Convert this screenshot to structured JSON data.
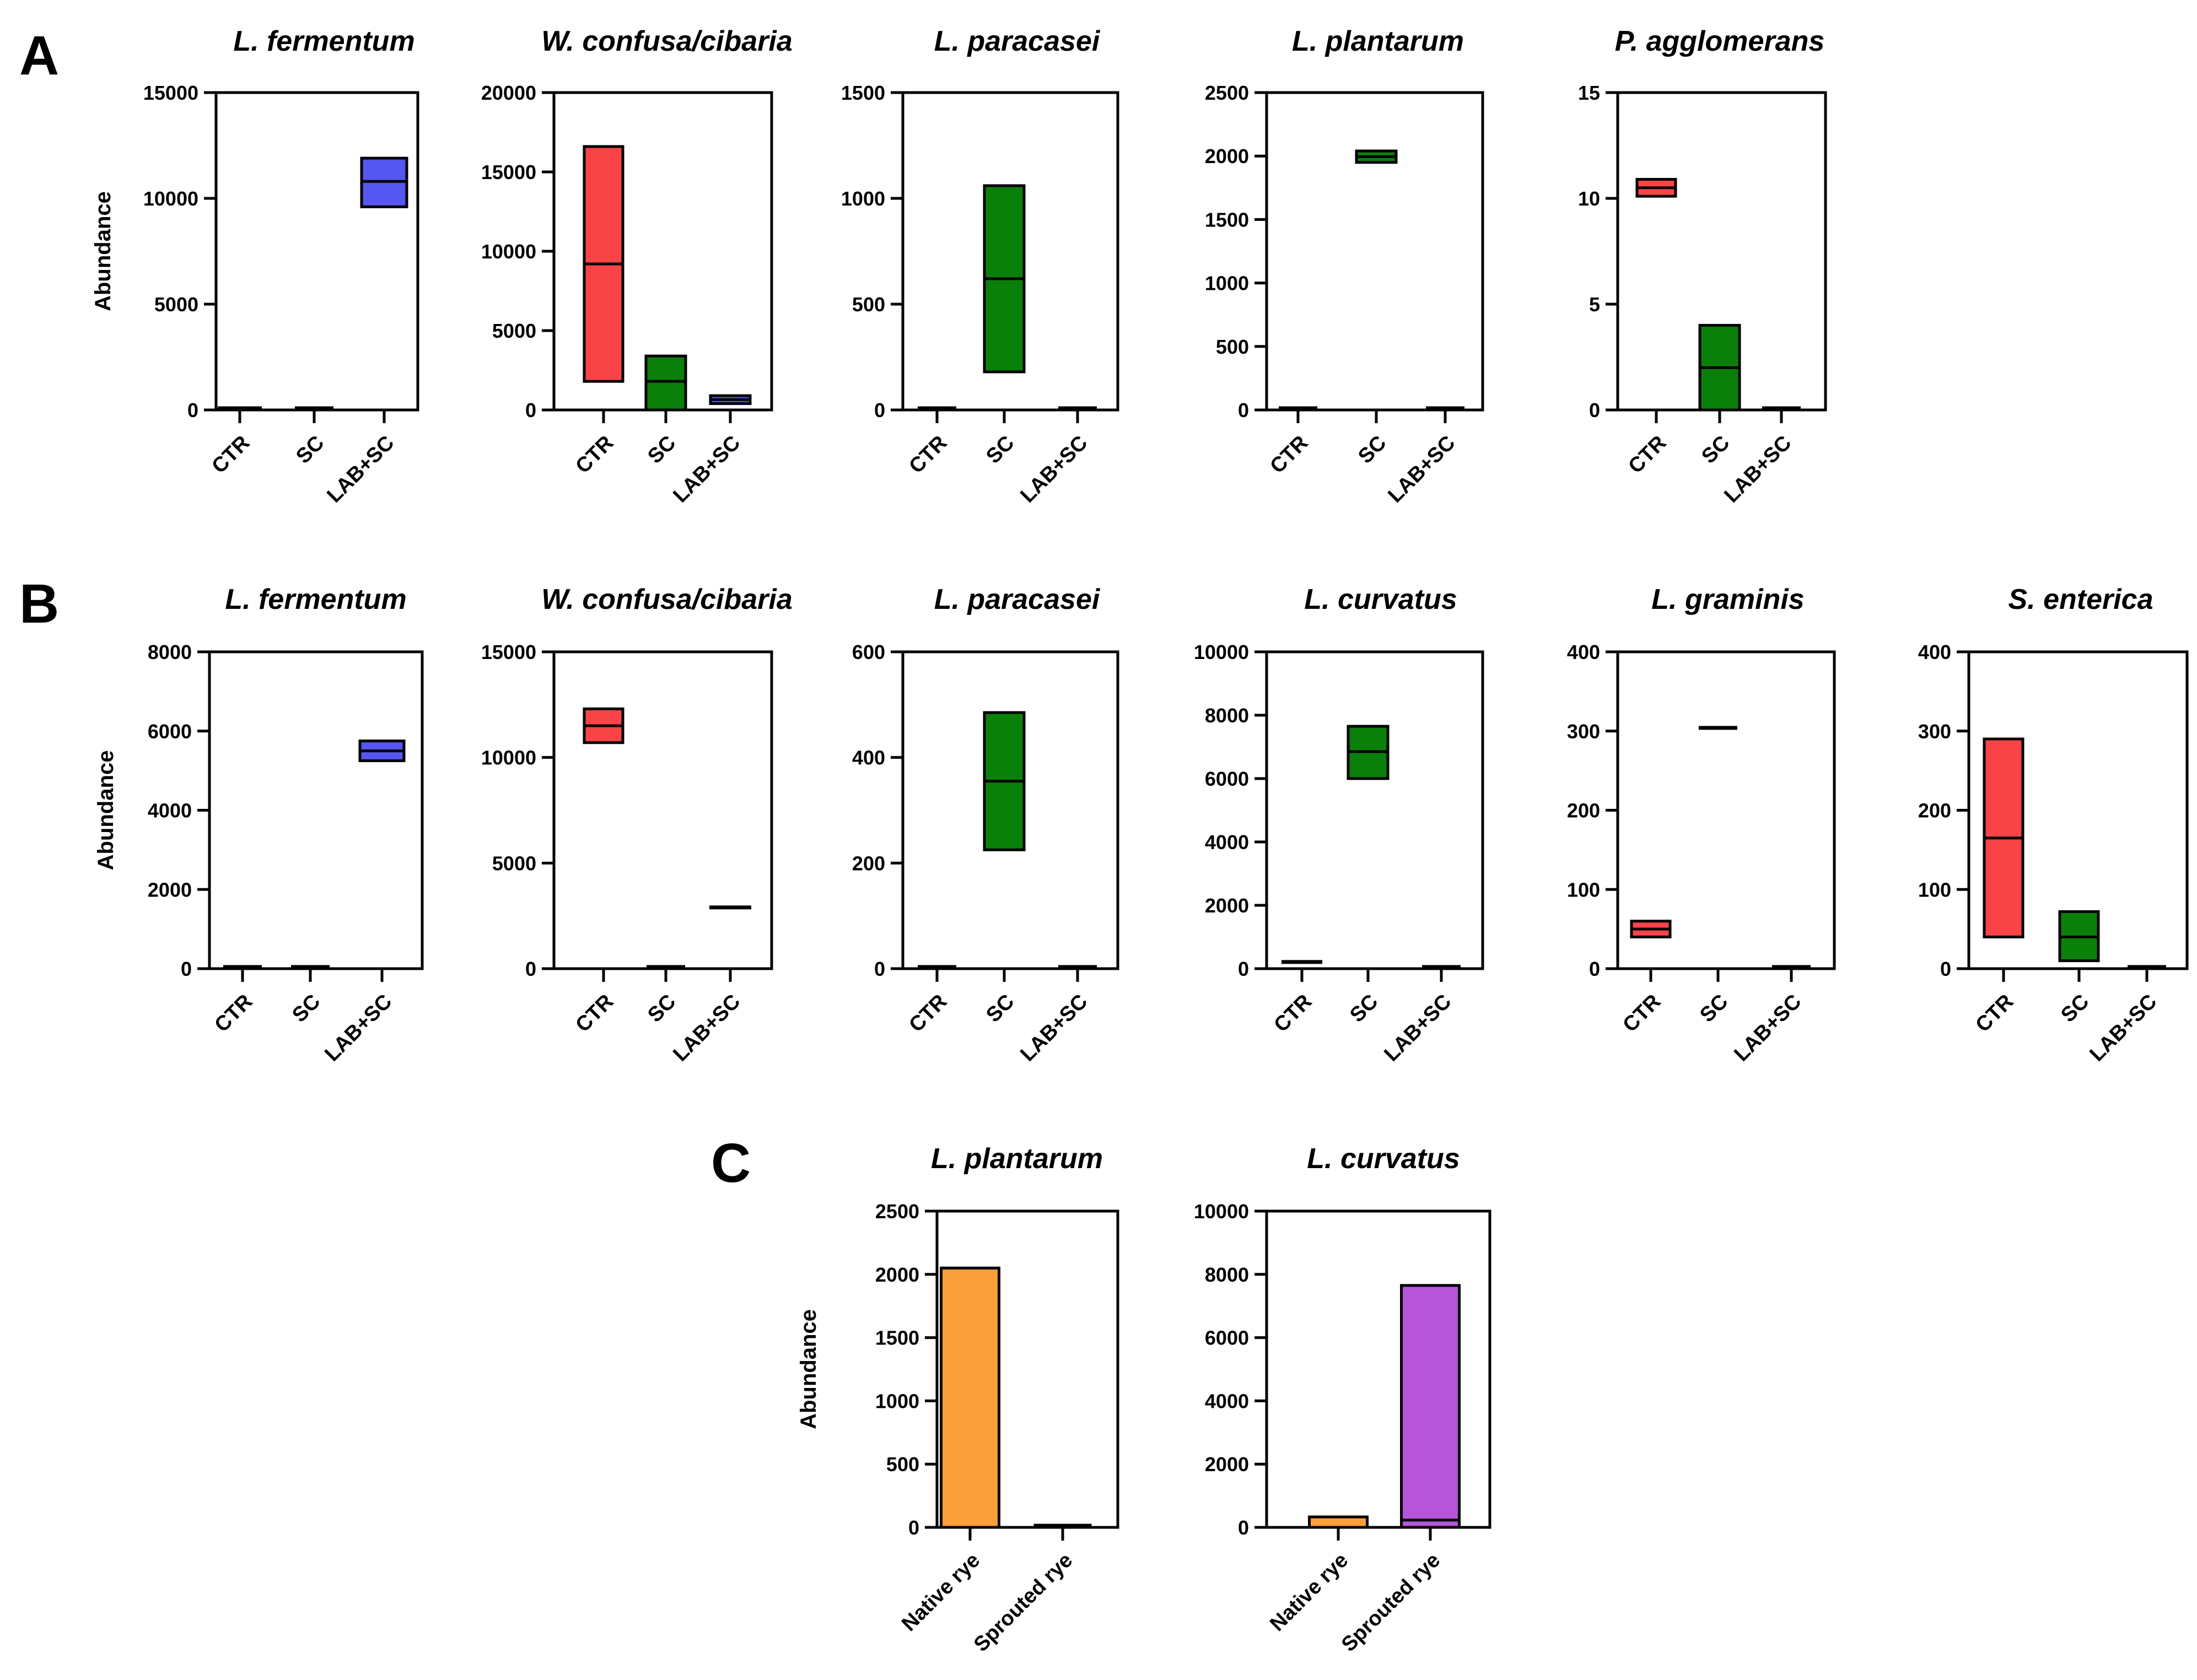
{
  "figure": {
    "panels": [
      {
        "letter": "A"
      },
      {
        "letter": "B"
      },
      {
        "letter": "C"
      }
    ]
  },
  "colors": {
    "CTR": "#f94447",
    "SC": "#0a800a",
    "LAB+SC": "#5656f0",
    "Native rye": "#fb9f3a",
    "Sprouted rye": "#b655da",
    "outline": "#000000"
  },
  "chart_data": [
    {
      "panel": "A",
      "type": "bar",
      "title": "L. fermentum",
      "ylabel": "Abundance",
      "categories": [
        "CTR",
        "SC",
        "LAB+SC"
      ],
      "ylim": [
        0,
        15000
      ],
      "yticks": [
        0,
        5000,
        10000,
        15000
      ],
      "ytick_labels": [
        "0",
        "5000",
        "10000",
        "15000"
      ],
      "bars": [
        {
          "category": "CTR",
          "min": 0,
          "max": 20,
          "median": 10
        },
        {
          "category": "SC",
          "min": 0,
          "max": 70,
          "median": 35
        },
        {
          "category": "LAB+SC",
          "min": 9600,
          "max": 11900,
          "median": 10800
        }
      ]
    },
    {
      "panel": "A",
      "type": "bar",
      "title": "W. confusa/cibaria",
      "ylabel": "",
      "categories": [
        "CTR",
        "SC",
        "LAB+SC"
      ],
      "ylim": [
        0,
        20000
      ],
      "yticks": [
        0,
        5000,
        10000,
        15000,
        20000
      ],
      "ytick_labels": [
        "0",
        "5000",
        "10000",
        "15000",
        "20000"
      ],
      "bars": [
        {
          "category": "CTR",
          "min": 1800,
          "max": 16600,
          "median": 9200
        },
        {
          "category": "SC",
          "min": 0,
          "max": 3400,
          "median": 1800
        },
        {
          "category": "LAB+SC",
          "min": 400,
          "max": 900,
          "median": 650
        }
      ]
    },
    {
      "panel": "A",
      "type": "bar",
      "title": "L. paracasei",
      "ylabel": "",
      "categories": [
        "CTR",
        "SC",
        "LAB+SC"
      ],
      "ylim": [
        0,
        1500
      ],
      "yticks": [
        0,
        500,
        1000,
        1500
      ],
      "ytick_labels": [
        "0",
        "500",
        "1000",
        "1500"
      ],
      "bars": [
        {
          "category": "CTR",
          "min": 0,
          "max": 8,
          "median": 4
        },
        {
          "category": "SC",
          "min": 180,
          "max": 1060,
          "median": 620
        },
        {
          "category": "LAB+SC",
          "min": 0,
          "max": 8,
          "median": 4
        }
      ]
    },
    {
      "panel": "A",
      "type": "bar",
      "title": "L. plantarum",
      "ylabel": "",
      "categories": [
        "CTR",
        "SC",
        "LAB+SC"
      ],
      "ylim": [
        0,
        2500
      ],
      "yticks": [
        0,
        500,
        1000,
        1500,
        2000,
        2500
      ],
      "ytick_labels": [
        "0",
        "500",
        "1000",
        "1500",
        "2000",
        "2500"
      ],
      "bars": [
        {
          "category": "SC",
          "min": 1950,
          "max": 2040,
          "median": 1995
        },
        {
          "category": "CTR",
          "min": 0,
          "max": 10,
          "median": 5
        },
        {
          "category": "LAB+SC",
          "min": 0,
          "max": 10,
          "median": 5
        }
      ]
    },
    {
      "panel": "A",
      "type": "bar",
      "title": "P. agglomerans",
      "ylabel": "",
      "categories": [
        "CTR",
        "SC",
        "LAB+SC"
      ],
      "ylim": [
        0,
        15
      ],
      "yticks": [
        0,
        5,
        10,
        15
      ],
      "ytick_labels": [
        "0",
        "5",
        "10",
        "15"
      ],
      "bars": [
        {
          "category": "CTR",
          "min": 10.1,
          "max": 10.9,
          "median": 10.5
        },
        {
          "category": "SC",
          "min": 0,
          "max": 4,
          "median": 2
        },
        {
          "category": "LAB+SC",
          "min": 0,
          "max": 0.1,
          "median": 0.05
        }
      ]
    },
    {
      "panel": "B",
      "type": "bar",
      "title": "L. fermentum",
      "ylabel": "Abundance",
      "categories": [
        "CTR",
        "SC",
        "LAB+SC"
      ],
      "ylim": [
        0,
        8000
      ],
      "yticks": [
        0,
        2000,
        4000,
        6000,
        8000
      ],
      "ytick_labels": [
        "0",
        "2000",
        "4000",
        "6000",
        "8000"
      ],
      "bars": [
        {
          "category": "CTR",
          "min": 0,
          "max": 20,
          "median": 10
        },
        {
          "category": "SC",
          "min": 0,
          "max": 20,
          "median": 10
        },
        {
          "category": "LAB+SC",
          "min": 5250,
          "max": 5750,
          "median": 5500
        }
      ]
    },
    {
      "panel": "B",
      "type": "bar",
      "title": "W. confusa/cibaria",
      "ylabel": "",
      "categories": [
        "CTR",
        "SC",
        "LAB+SC"
      ],
      "ylim": [
        0,
        15000
      ],
      "yticks": [
        0,
        5000,
        10000,
        15000
      ],
      "ytick_labels": [
        "0",
        "5000",
        "10000",
        "15000"
      ],
      "bars": [
        {
          "category": "CTR",
          "min": 10700,
          "max": 12300,
          "median": 11500
        },
        {
          "category": "SC",
          "min": 0,
          "max": 20,
          "median": 10
        },
        {
          "category": "LAB+SC",
          "min": 2900,
          "max": 2900,
          "median": 2900
        }
      ]
    },
    {
      "panel": "B",
      "type": "bar",
      "title": "L. paracasei",
      "ylabel": "",
      "categories": [
        "CTR",
        "SC",
        "LAB+SC"
      ],
      "ylim": [
        0,
        600
      ],
      "yticks": [
        0,
        200,
        400,
        600
      ],
      "ytick_labels": [
        "0",
        "200",
        "400",
        "600"
      ],
      "bars": [
        {
          "category": "CTR",
          "min": 0,
          "max": 3,
          "median": 1.5
        },
        {
          "category": "SC",
          "min": 225,
          "max": 485,
          "median": 355
        },
        {
          "category": "LAB+SC",
          "min": 0,
          "max": 3,
          "median": 1.5
        }
      ]
    },
    {
      "panel": "B",
      "type": "bar",
      "title": "L. curvatus",
      "ylabel": "",
      "categories": [
        "CTR",
        "SC",
        "LAB+SC"
      ],
      "ylim": [
        0,
        10000
      ],
      "yticks": [
        0,
        2000,
        4000,
        6000,
        8000,
        10000
      ],
      "ytick_labels": [
        "0",
        "2000",
        "4000",
        "6000",
        "8000",
        "10000"
      ],
      "bars": [
        {
          "category": "CTR",
          "min": 210,
          "max": 210,
          "median": 210
        },
        {
          "category": "SC",
          "min": 6000,
          "max": 7650,
          "median": 6850
        },
        {
          "category": "LAB+SC",
          "min": 0,
          "max": 40,
          "median": 20
        }
      ]
    },
    {
      "panel": "B",
      "type": "bar",
      "title": "L. graminis",
      "ylabel": "",
      "categories": [
        "CTR",
        "SC",
        "LAB+SC"
      ],
      "ylim": [
        0,
        400
      ],
      "yticks": [
        0,
        100,
        200,
        300,
        400
      ],
      "ytick_labels": [
        "0",
        "100",
        "200",
        "300",
        "400"
      ],
      "bars": [
        {
          "category": "CTR",
          "min": 40,
          "max": 60,
          "median": 50
        },
        {
          "category": "SC",
          "min": 304,
          "max": 304,
          "median": 304
        },
        {
          "category": "LAB+SC",
          "min": 0,
          "max": 2,
          "median": 1
        }
      ]
    },
    {
      "panel": "B",
      "type": "bar",
      "title": "S. enterica",
      "ylabel": "",
      "categories": [
        "CTR",
        "SC",
        "LAB+SC"
      ],
      "ylim": [
        0,
        400
      ],
      "yticks": [
        0,
        100,
        200,
        300,
        400
      ],
      "ytick_labels": [
        "0",
        "100",
        "200",
        "300",
        "400"
      ],
      "bars": [
        {
          "category": "CTR",
          "min": 40,
          "max": 290,
          "median": 165
        },
        {
          "category": "SC",
          "min": 10,
          "max": 72,
          "median": 40
        },
        {
          "category": "LAB+SC",
          "min": 0,
          "max": 2,
          "median": 1
        }
      ]
    },
    {
      "panel": "C",
      "type": "bar",
      "title": "L. plantarum",
      "ylabel": "Abundance",
      "categories": [
        "Native rye",
        "Sprouted rye"
      ],
      "ylim": [
        0,
        2500
      ],
      "yticks": [
        0,
        500,
        1000,
        1500,
        2000,
        2500
      ],
      "ytick_labels": [
        "0",
        "500",
        "1000",
        "1500",
        "2000",
        "2500"
      ],
      "bars": [
        {
          "category": "Native rye",
          "min": 0,
          "max": 2050,
          "median": 2050
        },
        {
          "category": "Sprouted rye",
          "min": 0,
          "max": 20,
          "median": 10
        }
      ]
    },
    {
      "panel": "C",
      "type": "bar",
      "title": "L. curvatus",
      "ylabel": "",
      "categories": [
        "Native rye",
        "Sprouted rye"
      ],
      "ylim": [
        0,
        10000
      ],
      "yticks": [
        0,
        2000,
        4000,
        6000,
        8000,
        10000
      ],
      "ytick_labels": [
        "0",
        "2000",
        "4000",
        "6000",
        "8000",
        "10000"
      ],
      "bars": [
        {
          "category": "Native rye",
          "min": 0,
          "max": 330,
          "median": 330
        },
        {
          "category": "Sprouted rye",
          "min": 0,
          "max": 7650,
          "median": 230
        }
      ]
    }
  ]
}
